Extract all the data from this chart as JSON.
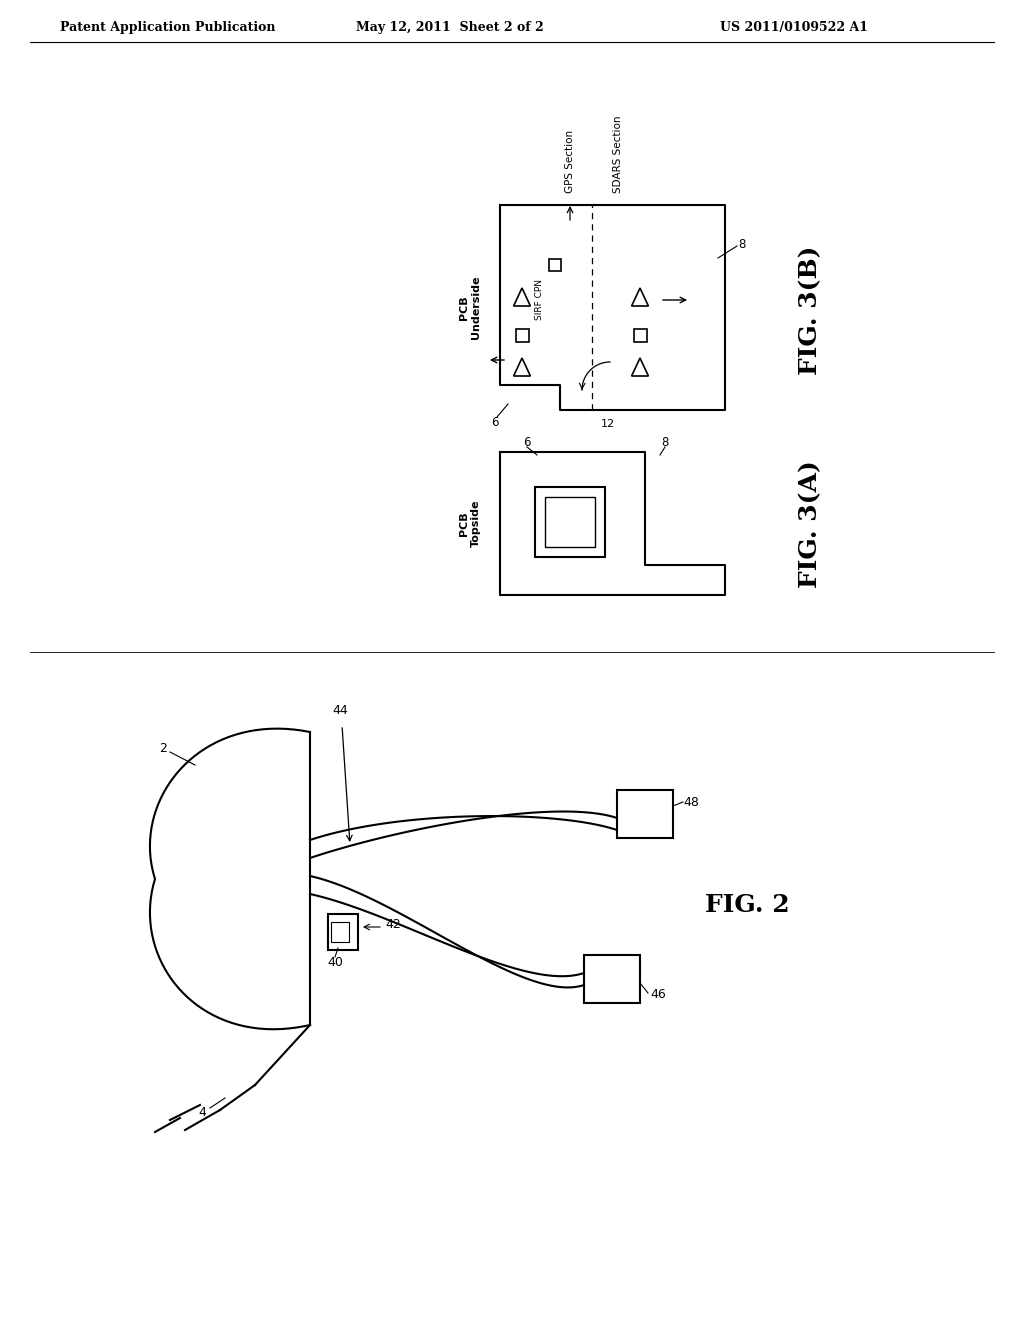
{
  "background_color": "#ffffff",
  "header_left": "Patent Application Publication",
  "header_center": "May 12, 2011  Sheet 2 of 2",
  "header_right": "US 2011/0109522 A1",
  "fig2_label": "FIG. 2",
  "fig3a_label": "FIG. 3(A)",
  "fig3b_label": "FIG. 3(B)",
  "line_color": "#000000",
  "line_width": 1.5,
  "thin_line": 0.8
}
